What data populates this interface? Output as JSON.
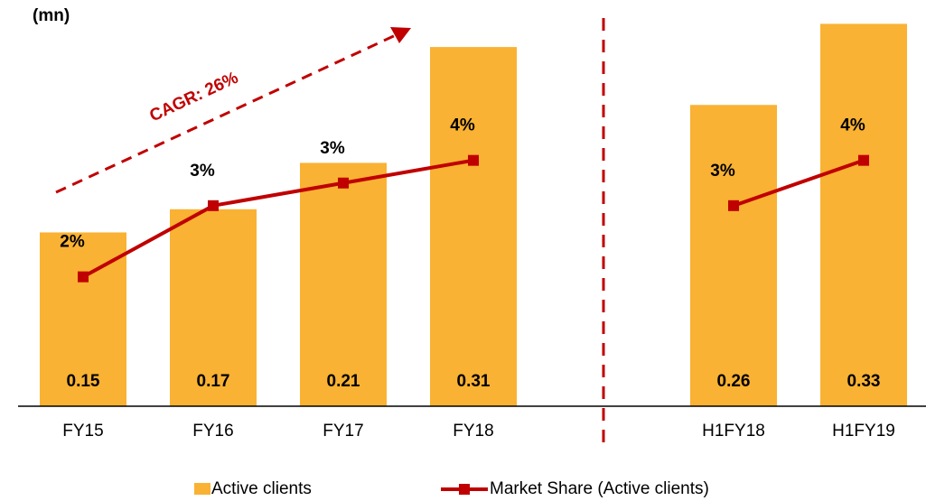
{
  "chart_data": {
    "type": "bar_line",
    "title": "(mn)",
    "annotation": "CAGR: 26%",
    "categories": [
      "FY15",
      "FY16",
      "FY17",
      "FY18",
      null,
      "H1FY18",
      "H1FY19"
    ],
    "series": [
      {
        "name": "Active clients",
        "type": "bar",
        "color": "#F9B233",
        "values": [
          0.15,
          0.17,
          0.21,
          0.31,
          null,
          0.26,
          0.33
        ]
      },
      {
        "name": "Market Share (Active clients)",
        "type": "line",
        "axis": "y2",
        "color": "#C00000",
        "values": [
          2.0,
          3.1,
          3.45,
          3.8,
          null,
          3.1,
          3.8
        ],
        "value_labels": [
          "2%",
          "3%",
          "3%",
          "4%",
          null,
          "3%",
          "4%"
        ]
      }
    ],
    "ylim": [
      0,
      0.335
    ],
    "y2lim": [
      0,
      6
    ],
    "legend": "bottom"
  }
}
